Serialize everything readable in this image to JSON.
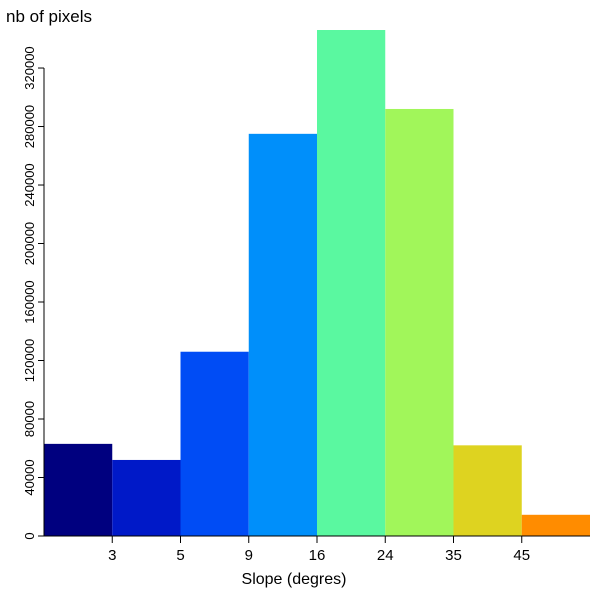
{
  "chart_data": {
    "type": "bar",
    "title": "",
    "ylabel": "nb of pixels",
    "xlabel": "Slope (degres)",
    "x_tick_labels": [
      "3",
      "5",
      "9",
      "16",
      "24",
      "35",
      "45"
    ],
    "y_tick_labels": [
      "0",
      "40000",
      "80000",
      "120000",
      "160000",
      "200000",
      "240000",
      "280000",
      "320000"
    ],
    "ylim": [
      0,
      346000
    ],
    "grid": false,
    "legend": "none",
    "bars": [
      {
        "bin": 1,
        "value": 63000,
        "color": "#00007F"
      },
      {
        "bin": 2,
        "value": 52000,
        "color": "#0019C8"
      },
      {
        "bin": 3,
        "value": 126000,
        "color": "#004CF5"
      },
      {
        "bin": 4,
        "value": 275000,
        "color": "#008FFA"
      },
      {
        "bin": 5,
        "value": 346000,
        "color": "#5AF8A0"
      },
      {
        "bin": 6,
        "value": 292000,
        "color": "#A1F65A"
      },
      {
        "bin": 7,
        "value": 62000,
        "color": "#DED320"
      },
      {
        "bin": 8,
        "value": 14500,
        "color": "#FF8C00"
      }
    ]
  }
}
